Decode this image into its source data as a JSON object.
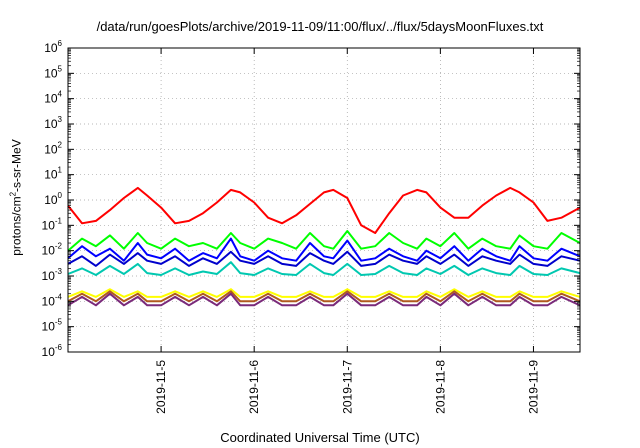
{
  "chart_data": {
    "type": "line",
    "title": "/data/run/goesPlots/archive/2019-11-09/11:00/flux/../flux/5daysMoonFluxes.txt",
    "xlabel": "Coordinated Universal Time (UTC)",
    "ylabel_main": "protons/cm",
    "ylabel_sup": "2",
    "ylabel_tail": "-s-sr-MeV",
    "y_scale": "log",
    "ylim": [
      1e-06,
      1000000.0
    ],
    "xlim_days": [
      4.0,
      9.5
    ],
    "x_ticks": [
      {
        "pos": 5,
        "label": "2019-11-5"
      },
      {
        "pos": 6,
        "label": "2019-11-6"
      },
      {
        "pos": 7,
        "label": "2019-11-7"
      },
      {
        "pos": 8,
        "label": "2019-11-8"
      },
      {
        "pos": 9,
        "label": "2019-11-9"
      }
    ],
    "y_ticks": [
      {
        "exp": -6,
        "base": "10",
        "sup": "-6"
      },
      {
        "exp": -5,
        "base": "10",
        "sup": "-5"
      },
      {
        "exp": -4,
        "base": "10",
        "sup": "-4"
      },
      {
        "exp": -3,
        "base": "10",
        "sup": "-3"
      },
      {
        "exp": -2,
        "base": "10",
        "sup": "-2"
      },
      {
        "exp": -1,
        "base": "10",
        "sup": "-1"
      },
      {
        "exp": 0,
        "base": "10",
        "sup": "0"
      },
      {
        "exp": 1,
        "base": "10",
        "sup": "1"
      },
      {
        "exp": 2,
        "base": "10",
        "sup": "2"
      },
      {
        "exp": 3,
        "base": "10",
        "sup": "3"
      },
      {
        "exp": 4,
        "base": "10",
        "sup": "4"
      },
      {
        "exp": 5,
        "base": "10",
        "sup": "5"
      },
      {
        "exp": 6,
        "base": "10",
        "sup": "6"
      }
    ],
    "grid": true,
    "legend": "none",
    "series": [
      {
        "color": "#ff0000",
        "x": [
          4.0,
          4.15,
          4.3,
          4.45,
          4.6,
          4.75,
          4.85,
          5.0,
          5.15,
          5.3,
          5.45,
          5.6,
          5.75,
          5.85,
          6.0,
          6.15,
          6.3,
          6.45,
          6.6,
          6.75,
          6.85,
          7.0,
          7.15,
          7.3,
          7.45,
          7.6,
          7.75,
          7.85,
          8.0,
          8.15,
          8.3,
          8.45,
          8.6,
          8.75,
          8.85,
          9.0,
          9.15,
          9.3,
          9.5
        ],
        "values": [
          0.6,
          0.12,
          0.15,
          0.4,
          1.2,
          3.0,
          1.5,
          0.5,
          0.12,
          0.15,
          0.3,
          0.8,
          2.5,
          2.0,
          0.8,
          0.2,
          0.12,
          0.25,
          0.7,
          2.0,
          2.5,
          1.2,
          0.1,
          0.05,
          0.3,
          1.5,
          2.5,
          2.0,
          0.5,
          0.2,
          0.2,
          0.6,
          1.5,
          3.0,
          2.0,
          0.8,
          0.15,
          0.2,
          0.5
        ]
      },
      {
        "color": "#00ff00",
        "x": [
          4.0,
          4.15,
          4.3,
          4.45,
          4.6,
          4.75,
          4.85,
          5.0,
          5.15,
          5.3,
          5.45,
          5.6,
          5.75,
          5.85,
          6.0,
          6.15,
          6.3,
          6.45,
          6.6,
          6.75,
          6.85,
          7.0,
          7.15,
          7.3,
          7.45,
          7.6,
          7.75,
          7.85,
          8.0,
          8.15,
          8.3,
          8.45,
          8.6,
          8.75,
          8.85,
          9.0,
          9.15,
          9.3,
          9.5
        ],
        "values": [
          0.01,
          0.03,
          0.015,
          0.04,
          0.012,
          0.05,
          0.02,
          0.012,
          0.03,
          0.015,
          0.02,
          0.012,
          0.05,
          0.02,
          0.012,
          0.03,
          0.02,
          0.012,
          0.05,
          0.015,
          0.012,
          0.06,
          0.012,
          0.015,
          0.05,
          0.02,
          0.012,
          0.03,
          0.015,
          0.05,
          0.012,
          0.03,
          0.015,
          0.012,
          0.04,
          0.015,
          0.012,
          0.05,
          0.02
        ]
      },
      {
        "color": "#0000ff",
        "x": [
          4.0,
          4.15,
          4.3,
          4.45,
          4.6,
          4.75,
          4.85,
          5.0,
          5.15,
          5.3,
          5.45,
          5.6,
          5.75,
          5.85,
          6.0,
          6.15,
          6.3,
          6.45,
          6.6,
          6.75,
          6.85,
          7.0,
          7.15,
          7.3,
          7.45,
          7.6,
          7.75,
          7.85,
          8.0,
          8.15,
          8.3,
          8.45,
          8.6,
          8.75,
          8.85,
          9.0,
          9.15,
          9.3,
          9.5
        ],
        "values": [
          0.005,
          0.015,
          0.006,
          0.012,
          0.004,
          0.02,
          0.007,
          0.005,
          0.012,
          0.004,
          0.008,
          0.005,
          0.03,
          0.006,
          0.004,
          0.01,
          0.005,
          0.004,
          0.02,
          0.006,
          0.005,
          0.025,
          0.004,
          0.005,
          0.012,
          0.006,
          0.004,
          0.01,
          0.005,
          0.015,
          0.004,
          0.012,
          0.006,
          0.004,
          0.015,
          0.005,
          0.004,
          0.012,
          0.006
        ]
      },
      {
        "color": "#0000cc",
        "x": [
          4.0,
          4.15,
          4.3,
          4.45,
          4.6,
          4.75,
          4.85,
          5.0,
          5.15,
          5.3,
          5.45,
          5.6,
          5.75,
          5.85,
          6.0,
          6.15,
          6.3,
          6.45,
          6.6,
          6.75,
          6.85,
          7.0,
          7.15,
          7.3,
          7.45,
          7.6,
          7.75,
          7.85,
          8.0,
          8.15,
          8.3,
          8.45,
          8.6,
          8.75,
          8.85,
          9.0,
          9.15,
          9.3,
          9.5
        ],
        "values": [
          0.003,
          0.006,
          0.0025,
          0.007,
          0.003,
          0.008,
          0.004,
          0.003,
          0.006,
          0.0025,
          0.005,
          0.003,
          0.009,
          0.004,
          0.003,
          0.006,
          0.003,
          0.0025,
          0.008,
          0.004,
          0.003,
          0.009,
          0.0025,
          0.003,
          0.007,
          0.004,
          0.003,
          0.006,
          0.003,
          0.007,
          0.0025,
          0.006,
          0.004,
          0.003,
          0.007,
          0.003,
          0.0025,
          0.006,
          0.004
        ]
      },
      {
        "color": "#00c8b0",
        "x": [
          4.0,
          4.15,
          4.3,
          4.45,
          4.6,
          4.75,
          4.85,
          5.0,
          5.15,
          5.3,
          5.45,
          5.6,
          5.75,
          5.85,
          6.0,
          6.15,
          6.3,
          6.45,
          6.6,
          6.75,
          6.85,
          7.0,
          7.15,
          7.3,
          7.45,
          7.6,
          7.75,
          7.85,
          8.0,
          8.15,
          8.3,
          8.45,
          8.6,
          8.75,
          8.85,
          9.0,
          9.15,
          9.3,
          9.5
        ],
        "values": [
          0.0012,
          0.002,
          0.0011,
          0.0025,
          0.0012,
          0.003,
          0.0013,
          0.0011,
          0.002,
          0.0011,
          0.0015,
          0.0012,
          0.0035,
          0.0013,
          0.0011,
          0.002,
          0.0012,
          0.0011,
          0.003,
          0.0013,
          0.0011,
          0.003,
          0.0011,
          0.0012,
          0.0025,
          0.0013,
          0.0011,
          0.002,
          0.0012,
          0.0025,
          0.0011,
          0.002,
          0.0013,
          0.0011,
          0.0025,
          0.0012,
          0.0011,
          0.002,
          0.0013
        ]
      },
      {
        "color": "#ffff00",
        "x": [
          4.0,
          4.15,
          4.3,
          4.45,
          4.6,
          4.75,
          4.85,
          5.0,
          5.15,
          5.3,
          5.45,
          5.6,
          5.75,
          5.85,
          6.0,
          6.15,
          6.3,
          6.45,
          6.6,
          6.75,
          6.85,
          7.0,
          7.15,
          7.3,
          7.45,
          7.6,
          7.75,
          7.85,
          8.0,
          8.15,
          8.3,
          8.45,
          8.6,
          8.75,
          8.85,
          9.0,
          9.15,
          9.3,
          9.5
        ],
        "values": [
          0.00015,
          0.00025,
          0.00015,
          0.0003,
          0.00015,
          0.00025,
          0.00015,
          0.00015,
          0.00025,
          0.00015,
          0.00025,
          0.00015,
          0.0003,
          0.00015,
          0.00015,
          0.00025,
          0.00015,
          0.00015,
          0.00025,
          0.00015,
          0.00015,
          0.0003,
          0.00015,
          0.00015,
          0.00025,
          0.00015,
          0.00015,
          0.00025,
          0.00015,
          0.0003,
          0.00015,
          0.00025,
          0.00015,
          0.00015,
          0.00025,
          0.00015,
          0.00015,
          0.00025,
          0.00015
        ]
      },
      {
        "color": "#b05a1e",
        "x": [
          4.0,
          4.15,
          4.3,
          4.45,
          4.6,
          4.75,
          4.85,
          5.0,
          5.15,
          5.3,
          5.45,
          5.6,
          5.75,
          5.85,
          6.0,
          6.15,
          6.3,
          6.45,
          6.6,
          6.75,
          6.85,
          7.0,
          7.15,
          7.3,
          7.45,
          7.6,
          7.75,
          7.85,
          8.0,
          8.15,
          8.3,
          8.45,
          8.6,
          8.75,
          8.85,
          9.0,
          9.15,
          9.3,
          9.5
        ],
        "values": [
          0.0001,
          0.0002,
          0.0001,
          0.00025,
          0.0001,
          0.0002,
          0.0001,
          0.0001,
          0.0002,
          0.0001,
          0.0002,
          0.0001,
          0.00025,
          0.0001,
          0.0001,
          0.0002,
          0.0001,
          0.0001,
          0.0002,
          0.0001,
          0.0001,
          0.00025,
          0.0001,
          0.0001,
          0.0002,
          0.0001,
          0.0001,
          0.0002,
          0.0001,
          0.00025,
          0.0001,
          0.0002,
          0.0001,
          0.0001,
          0.0002,
          0.0001,
          0.0001,
          0.0002,
          0.0001
        ]
      },
      {
        "color": "#7a2a7a",
        "x": [
          4.0,
          4.15,
          4.3,
          4.45,
          4.6,
          4.75,
          4.85,
          5.0,
          5.15,
          5.3,
          5.45,
          5.6,
          5.75,
          5.85,
          6.0,
          6.15,
          6.3,
          6.45,
          6.6,
          6.75,
          6.85,
          7.0,
          7.15,
          7.3,
          7.45,
          7.6,
          7.75,
          7.85,
          8.0,
          8.15,
          8.3,
          8.45,
          8.6,
          8.75,
          8.85,
          9.0,
          9.15,
          9.3,
          9.5
        ],
        "values": [
          7e-05,
          0.00015,
          7e-05,
          0.0002,
          7e-05,
          0.00015,
          7e-05,
          7e-05,
          0.00015,
          7e-05,
          0.00015,
          7e-05,
          0.0002,
          7e-05,
          7e-05,
          0.00015,
          7e-05,
          7e-05,
          0.00015,
          7e-05,
          7e-05,
          0.0002,
          7e-05,
          7e-05,
          0.00015,
          7e-05,
          7e-05,
          0.00015,
          7e-05,
          0.0002,
          7e-05,
          0.00015,
          7e-05,
          7e-05,
          0.00015,
          7e-05,
          7e-05,
          0.00015,
          7e-05
        ]
      }
    ]
  }
}
